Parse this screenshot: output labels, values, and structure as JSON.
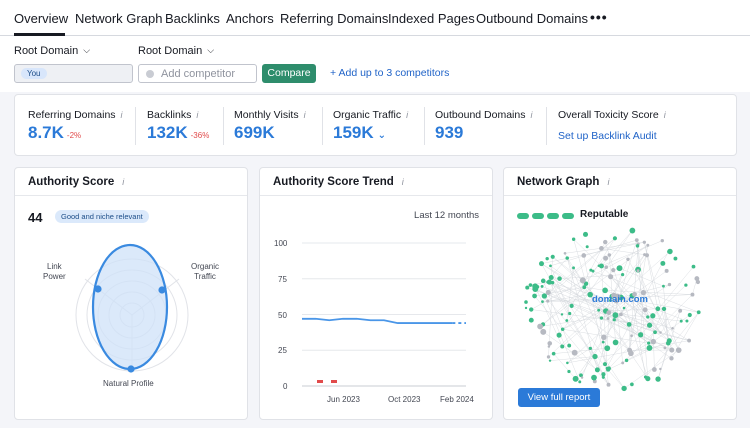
{
  "tabs": [
    {
      "label": "Overview",
      "active": true
    },
    {
      "label": "Network Graph",
      "active": false
    },
    {
      "label": "Backlinks",
      "active": false
    },
    {
      "label": "Anchors",
      "active": false
    },
    {
      "label": "Referring Domains",
      "active": false
    },
    {
      "label": "Indexed Pages",
      "active": false
    },
    {
      "label": "Outbound Domains",
      "active": false
    }
  ],
  "more_tabs_label": "•••",
  "topbar": {
    "root_domain_1": "Root Domain",
    "root_domain_2": "Root Domain",
    "you_chip": "You",
    "competitor_placeholder": "Add competitor",
    "compare_label": "Compare",
    "add_competitors_label": "+  Add up to 3 competitors"
  },
  "metrics": [
    {
      "label": "Referring Domains",
      "value": "8.7K",
      "delta": "-2%"
    },
    {
      "label": "Backlinks",
      "value": "132K",
      "delta": "-36%"
    },
    {
      "label": "Monthly Visits",
      "value": "699K",
      "delta": ""
    },
    {
      "label": "Organic Traffic",
      "value": "159K",
      "delta": ""
    },
    {
      "label": "Outbound Domains",
      "value": "939",
      "delta": ""
    },
    {
      "label": "Overall Toxicity Score",
      "link": "Set up Backlink Audit"
    }
  ],
  "info_glyph": "i",
  "authority": {
    "title": "Authority Score",
    "score": "44",
    "badge": "Good and niche relevant",
    "radar_labels": {
      "link_power": "Link\nPower",
      "organic_traffic": "Organic\nTraffic",
      "natural_profile": "Natural Profile"
    }
  },
  "trend": {
    "title": "Authority Score Trend",
    "period": "Last 12 months",
    "y_ticks": [
      "100",
      "75",
      "50",
      "25",
      "0"
    ],
    "x_ticks": [
      "Jun 2023",
      "Oct 2023",
      "Feb 2024"
    ]
  },
  "network": {
    "title": "Network Graph",
    "reputation": "Reputable",
    "domain_label": "domain.com",
    "view_button": "View full report"
  },
  "colors": {
    "accent_blue": "#2b7ad8",
    "compare_green": "#2e8d6c",
    "reputable_green": "#3cbc88",
    "negative_red": "#e14b4b"
  },
  "chart_data": {
    "type": "line",
    "x": [
      "2023-03",
      "2023-04",
      "2023-05",
      "2023-06",
      "2023-07",
      "2023-08",
      "2023-09",
      "2023-10",
      "2023-11",
      "2023-12",
      "2024-01",
      "2024-02",
      "2024-03"
    ],
    "series": [
      {
        "values": [
          47,
          47,
          46,
          47,
          47,
          46,
          46,
          44,
          44,
          44,
          44,
          44,
          44
        ]
      }
    ],
    "x_ticks": [
      "Jun 2023",
      "Oct 2023",
      "Feb 2024"
    ],
    "ylim": [
      0,
      100
    ],
    "yticks": [
      0,
      25,
      50,
      75,
      100
    ],
    "grid": true
  }
}
